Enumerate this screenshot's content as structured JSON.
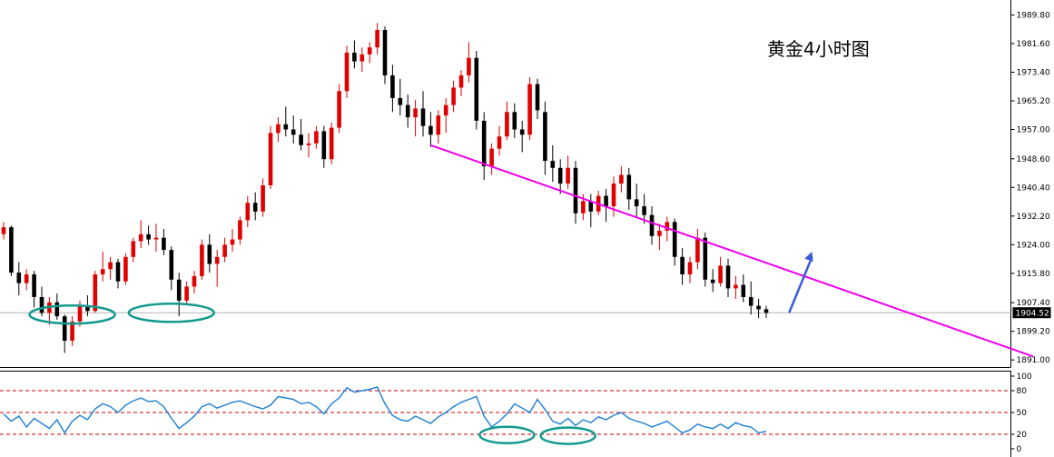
{
  "chart_data": [
    {
      "type": "candlestick",
      "title": "黄金4小时图",
      "yticks": [
        1989.8,
        1981.6,
        1973.4,
        1965.2,
        1957.0,
        1948.6,
        1940.4,
        1932.2,
        1924.0,
        1915.8,
        1907.4,
        1899.2,
        1891.0
      ],
      "ylim": [
        1890,
        1992
      ],
      "current_price": 1904.52,
      "price_line": 1904.52,
      "colors": {
        "up": "#e00000",
        "down": "#000000",
        "trendline": "#ee00ee",
        "ellipse": "#139a8e",
        "arrow": "#3b5bd8",
        "price_tag": "#000000"
      },
      "trendline": {
        "from": {
          "index": 56,
          "price": 1952.5
        },
        "to": {
          "index": 135,
          "price": 1892.0
        }
      },
      "arrow": {
        "from": {
          "index": 103,
          "price": 1904.5
        },
        "to": {
          "index": 106,
          "price": 1922.0
        }
      },
      "ellipses": [
        {
          "center_index": 9,
          "price": 1904.0
        },
        {
          "center_index": 22,
          "price": 1904.5
        }
      ],
      "candles": [
        [
          1927.0,
          1930.5,
          1925.5,
          1929.0
        ],
        [
          1929.0,
          1929.5,
          1915.0,
          1916.0
        ],
        [
          1916.0,
          1919.0,
          1909.5,
          1913.0
        ],
        [
          1913.0,
          1917.0,
          1911.0,
          1915.5
        ],
        [
          1915.5,
          1916.5,
          1906.0,
          1909.0
        ],
        [
          1909.0,
          1912.0,
          1903.5,
          1904.5
        ],
        [
          1904.5,
          1909.0,
          1901.0,
          1907.5
        ],
        [
          1907.5,
          1910.0,
          1902.5,
          1903.5
        ],
        [
          1903.5,
          1904.0,
          1893.0,
          1896.5
        ],
        [
          1896.5,
          1903.5,
          1895.0,
          1902.0
        ],
        [
          1902.0,
          1908.0,
          1900.5,
          1906.5
        ],
        [
          1906.5,
          1909.5,
          1903.5,
          1905.0
        ],
        [
          1905.0,
          1916.5,
          1904.5,
          1915.5
        ],
        [
          1915.5,
          1922.0,
          1913.5,
          1917.0
        ],
        [
          1917.0,
          1920.5,
          1914.0,
          1919.0
        ],
        [
          1919.0,
          1920.0,
          1911.5,
          1913.5
        ],
        [
          1913.5,
          1921.5,
          1912.5,
          1920.5
        ],
        [
          1920.5,
          1926.0,
          1919.0,
          1925.0
        ],
        [
          1925.0,
          1931.0,
          1923.0,
          1927.0
        ],
        [
          1927.0,
          1929.5,
          1924.0,
          1925.5
        ],
        [
          1925.5,
          1930.0,
          1922.0,
          1926.0
        ],
        [
          1926.0,
          1928.5,
          1921.0,
          1922.5
        ],
        [
          1922.5,
          1923.5,
          1911.0,
          1914.0
        ],
        [
          1914.0,
          1916.0,
          1903.5,
          1908.0
        ],
        [
          1908.0,
          1913.5,
          1907.0,
          1912.0
        ],
        [
          1912.0,
          1916.5,
          1910.0,
          1915.0
        ],
        [
          1915.0,
          1925.5,
          1914.0,
          1924.0
        ],
        [
          1924.0,
          1927.0,
          1916.0,
          1918.5
        ],
        [
          1918.5,
          1922.5,
          1912.0,
          1920.5
        ],
        [
          1920.5,
          1926.0,
          1919.0,
          1924.0
        ],
        [
          1924.0,
          1928.5,
          1922.0,
          1925.5
        ],
        [
          1925.5,
          1932.0,
          1924.0,
          1931.0
        ],
        [
          1931.0,
          1938.0,
          1929.0,
          1936.0
        ],
        [
          1936.0,
          1939.0,
          1931.0,
          1933.5
        ],
        [
          1933.5,
          1943.0,
          1932.0,
          1941.0
        ],
        [
          1941.0,
          1958.0,
          1940.0,
          1956.0
        ],
        [
          1956.0,
          1960.5,
          1953.5,
          1958.5
        ],
        [
          1958.5,
          1963.5,
          1955.0,
          1957.0
        ],
        [
          1957.0,
          1961.0,
          1953.0,
          1955.5
        ],
        [
          1955.5,
          1960.0,
          1951.0,
          1952.5
        ],
        [
          1952.5,
          1956.0,
          1949.0,
          1953.0
        ],
        [
          1953.0,
          1958.0,
          1951.5,
          1956.5
        ],
        [
          1956.5,
          1958.0,
          1946.0,
          1948.5
        ],
        [
          1948.5,
          1959.0,
          1947.0,
          1957.5
        ],
        [
          1957.5,
          1970.0,
          1956.0,
          1968.0
        ],
        [
          1968.0,
          1981.0,
          1966.0,
          1979.0
        ],
        [
          1979.0,
          1982.5,
          1974.5,
          1976.5
        ],
        [
          1976.5,
          1980.5,
          1973.5,
          1978.5
        ],
        [
          1978.5,
          1982.0,
          1976.0,
          1980.5
        ],
        [
          1980.5,
          1987.5,
          1978.5,
          1985.5
        ],
        [
          1985.5,
          1986.5,
          1970.0,
          1972.5
        ],
        [
          1972.5,
          1975.5,
          1962.0,
          1966.0
        ],
        [
          1966.0,
          1971.5,
          1961.0,
          1964.0
        ],
        [
          1964.0,
          1967.0,
          1957.5,
          1960.5
        ],
        [
          1960.5,
          1965.5,
          1955.0,
          1963.0
        ],
        [
          1963.0,
          1968.0,
          1955.0,
          1958.0
        ],
        [
          1958.0,
          1962.0,
          1952.0,
          1955.5
        ],
        [
          1955.5,
          1962.5,
          1953.0,
          1961.0
        ],
        [
          1961.0,
          1966.0,
          1956.0,
          1964.0
        ],
        [
          1964.0,
          1971.0,
          1962.0,
          1969.0
        ],
        [
          1969.0,
          1974.0,
          1966.5,
          1972.5
        ],
        [
          1972.5,
          1982.0,
          1970.5,
          1977.5
        ],
        [
          1977.5,
          1979.5,
          1957.0,
          1959.5
        ],
        [
          1959.5,
          1962.0,
          1942.5,
          1946.5
        ],
        [
          1946.5,
          1953.0,
          1944.0,
          1951.5
        ],
        [
          1951.5,
          1958.0,
          1949.5,
          1955.0
        ],
        [
          1955.0,
          1965.0,
          1954.0,
          1962.0
        ],
        [
          1962.0,
          1964.5,
          1954.5,
          1957.0
        ],
        [
          1957.0,
          1959.5,
          1950.5,
          1955.5
        ],
        [
          1955.5,
          1972.0,
          1954.0,
          1970.0
        ],
        [
          1970.0,
          1971.5,
          1960.0,
          1962.5
        ],
        [
          1962.0,
          1965.0,
          1944.0,
          1948.0
        ],
        [
          1948.0,
          1952.5,
          1942.0,
          1946.0
        ],
        [
          1946.0,
          1948.5,
          1938.5,
          1941.5
        ],
        [
          1941.5,
          1949.5,
          1940.0,
          1946.0
        ],
        [
          1946.0,
          1948.0,
          1930.0,
          1933.0
        ],
        [
          1933.0,
          1938.5,
          1931.0,
          1936.5
        ],
        [
          1936.5,
          1938.5,
          1929.0,
          1933.5
        ],
        [
          1933.5,
          1939.5,
          1932.5,
          1938.0
        ],
        [
          1938.0,
          1940.0,
          1930.5,
          1935.0
        ],
        [
          1935.0,
          1943.5,
          1932.0,
          1941.5
        ],
        [
          1941.5,
          1946.5,
          1939.0,
          1944.0
        ],
        [
          1944.0,
          1946.0,
          1934.0,
          1937.0
        ],
        [
          1937.0,
          1941.5,
          1932.0,
          1935.0
        ],
        [
          1935.0,
          1938.5,
          1930.0,
          1932.5
        ],
        [
          1932.5,
          1935.0,
          1924.0,
          1926.5
        ],
        [
          1926.5,
          1930.0,
          1922.5,
          1928.0
        ],
        [
          1928.0,
          1932.0,
          1925.0,
          1930.5
        ],
        [
          1930.5,
          1931.5,
          1918.0,
          1920.5
        ],
        [
          1920.5,
          1923.0,
          1912.5,
          1915.5
        ],
        [
          1915.5,
          1920.5,
          1913.0,
          1919.0
        ],
        [
          1919.0,
          1928.5,
          1917.0,
          1926.0
        ],
        [
          1926.0,
          1927.5,
          1912.0,
          1914.0
        ],
        [
          1914.0,
          1917.0,
          1910.5,
          1913.0
        ],
        [
          1913.0,
          1920.5,
          1912.0,
          1918.0
        ],
        [
          1918.0,
          1920.0,
          1909.0,
          1911.5
        ],
        [
          1911.5,
          1915.0,
          1908.5,
          1912.5
        ],
        [
          1912.5,
          1915.5,
          1907.5,
          1909.0
        ],
        [
          1909.0,
          1913.5,
          1904.0,
          1906.5
        ],
        [
          1906.5,
          1908.5,
          1903.0,
          1905.5
        ],
        [
          1905.5,
          1906.5,
          1903.0,
          1904.5
        ]
      ]
    },
    {
      "type": "line",
      "yticks": [
        100,
        80,
        50,
        20,
        0
      ],
      "ylim": [
        0,
        100
      ],
      "reference_lines": [
        80,
        50,
        20
      ],
      "colors": {
        "line": "#1c7ed6",
        "reference": "#cc0000",
        "ellipse": "#139a8e"
      },
      "ellipses": [
        {
          "center_index": 66,
          "value": 19
        },
        {
          "center_index": 74,
          "value": 18
        }
      ],
      "values": [
        48,
        38,
        45,
        30,
        42,
        35,
        28,
        40,
        22,
        38,
        46,
        40,
        55,
        62,
        58,
        50,
        60,
        66,
        70,
        65,
        66,
        58,
        42,
        28,
        36,
        45,
        58,
        62,
        56,
        60,
        64,
        66,
        62,
        58,
        55,
        60,
        72,
        70,
        68,
        62,
        64,
        58,
        48,
        62,
        70,
        84,
        78,
        80,
        82,
        85,
        62,
        46,
        40,
        38,
        45,
        40,
        35,
        44,
        50,
        58,
        64,
        68,
        72,
        45,
        30,
        38,
        48,
        62,
        56,
        50,
        68,
        54,
        38,
        34,
        42,
        32,
        40,
        36,
        44,
        40,
        46,
        50,
        42,
        38,
        35,
        30,
        34,
        38,
        30,
        22,
        26,
        34,
        30,
        28,
        34,
        28,
        36,
        32,
        30,
        22,
        24
      ]
    }
  ]
}
